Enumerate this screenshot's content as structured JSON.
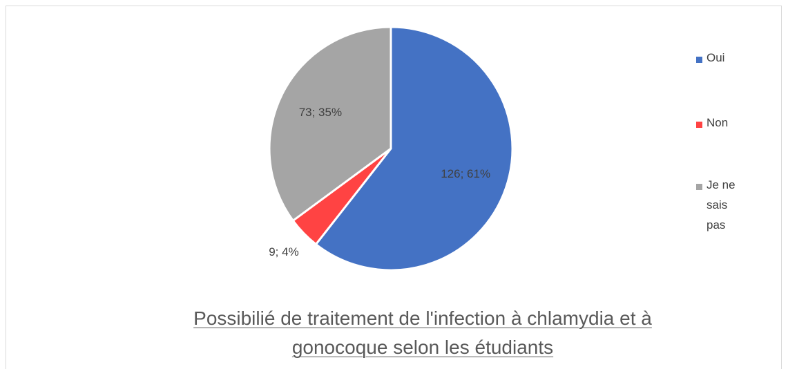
{
  "chart_data": {
    "type": "pie",
    "title": "Possibilié de traitement de l'infection à chlamydia et à gonocoque selon les étudiants",
    "categories": [
      "Oui",
      "Non",
      "Je ne sais pas"
    ],
    "values": [
      126,
      9,
      73
    ],
    "value_labels": [
      "126; 61%",
      "9; 4%",
      "73; 35%"
    ],
    "colors": [
      "#4472c4",
      "#ff4343",
      "#a5a5a5"
    ],
    "legend": "right"
  }
}
